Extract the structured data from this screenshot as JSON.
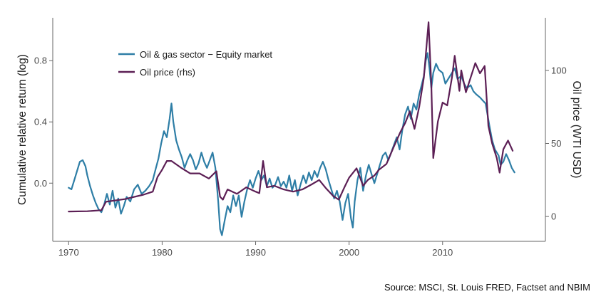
{
  "chart_data": {
    "type": "line",
    "source": "Source: MSCI, St. Louis FRED, Factset and NBIM",
    "x_axis": {
      "ticks": [
        1970,
        1980,
        1990,
        2000,
        2010
      ],
      "tick_labels": [
        "1970",
        "1980",
        "1990",
        "2000",
        "2010"
      ],
      "range": [
        1968.3,
        2021.0
      ]
    },
    "y_left": {
      "label": "Cumulative relative return (log)",
      "ticks": [
        0.0,
        0.4,
        0.8
      ],
      "tick_labels": [
        "0.0",
        "0.4",
        "0.8"
      ],
      "range": [
        -0.38,
        1.08
      ]
    },
    "y_right": {
      "label": "Oil price (WTI USD)",
      "ticks": [
        0,
        50,
        100
      ],
      "tick_labels": [
        "0",
        "50",
        "100"
      ],
      "range": [
        -17,
        136
      ]
    },
    "grid": false,
    "legend": {
      "position": "top-left"
    },
    "series": [
      {
        "name": "Oil & gas sector − Equity market",
        "axis": "left",
        "color": "#2e7ea6",
        "points": [
          [
            1970.0,
            -0.03
          ],
          [
            1970.3,
            -0.04
          ],
          [
            1970.6,
            0.02
          ],
          [
            1970.9,
            0.08
          ],
          [
            1971.2,
            0.14
          ],
          [
            1971.5,
            0.15
          ],
          [
            1971.8,
            0.11
          ],
          [
            1972.0,
            0.05
          ],
          [
            1972.3,
            -0.02
          ],
          [
            1972.6,
            -0.08
          ],
          [
            1972.9,
            -0.13
          ],
          [
            1973.2,
            -0.17
          ],
          [
            1973.5,
            -0.19
          ],
          [
            1973.8,
            -0.14
          ],
          [
            1974.1,
            -0.07
          ],
          [
            1974.4,
            -0.14
          ],
          [
            1974.7,
            -0.05
          ],
          [
            1975.0,
            -0.16
          ],
          [
            1975.3,
            -0.1
          ],
          [
            1975.6,
            -0.2
          ],
          [
            1975.9,
            -0.15
          ],
          [
            1976.2,
            -0.09
          ],
          [
            1976.6,
            -0.12
          ],
          [
            1977.0,
            -0.04
          ],
          [
            1977.4,
            -0.01
          ],
          [
            1977.8,
            -0.07
          ],
          [
            1978.2,
            -0.05
          ],
          [
            1978.6,
            -0.02
          ],
          [
            1979.0,
            0.02
          ],
          [
            1979.3,
            0.09
          ],
          [
            1979.6,
            0.16
          ],
          [
            1979.9,
            0.26
          ],
          [
            1980.2,
            0.34
          ],
          [
            1980.5,
            0.3
          ],
          [
            1980.8,
            0.42
          ],
          [
            1981.0,
            0.52
          ],
          [
            1981.2,
            0.4
          ],
          [
            1981.5,
            0.28
          ],
          [
            1981.8,
            0.22
          ],
          [
            1982.1,
            0.17
          ],
          [
            1982.4,
            0.1
          ],
          [
            1982.7,
            0.15
          ],
          [
            1983.0,
            0.19
          ],
          [
            1983.3,
            0.15
          ],
          [
            1983.6,
            0.09
          ],
          [
            1983.9,
            0.13
          ],
          [
            1984.2,
            0.2
          ],
          [
            1984.5,
            0.14
          ],
          [
            1984.8,
            0.1
          ],
          [
            1985.1,
            0.15
          ],
          [
            1985.4,
            0.2
          ],
          [
            1985.7,
            0.1
          ],
          [
            1986.0,
            -0.12
          ],
          [
            1986.2,
            -0.3
          ],
          [
            1986.4,
            -0.34
          ],
          [
            1986.7,
            -0.24
          ],
          [
            1987.0,
            -0.15
          ],
          [
            1987.3,
            -0.19
          ],
          [
            1987.6,
            -0.08
          ],
          [
            1987.9,
            -0.15
          ],
          [
            1988.2,
            -0.08
          ],
          [
            1988.5,
            -0.22
          ],
          [
            1988.8,
            -0.12
          ],
          [
            1989.1,
            -0.04
          ],
          [
            1989.4,
            0.02
          ],
          [
            1989.7,
            -0.03
          ],
          [
            1990.0,
            0.03
          ],
          [
            1990.3,
            0.08
          ],
          [
            1990.6,
            0.02
          ],
          [
            1990.9,
            0.05
          ],
          [
            1991.2,
            -0.02
          ],
          [
            1991.5,
            0.03
          ],
          [
            1991.8,
            -0.03
          ],
          [
            1992.1,
            -0.01
          ],
          [
            1992.4,
            0.04
          ],
          [
            1992.7,
            -0.02
          ],
          [
            1993.0,
            0.01
          ],
          [
            1993.3,
            -0.03
          ],
          [
            1993.6,
            0.05
          ],
          [
            1993.9,
            -0.05
          ],
          [
            1994.2,
            0.02
          ],
          [
            1994.5,
            -0.08
          ],
          [
            1994.8,
            -0.01
          ],
          [
            1995.1,
            0.05
          ],
          [
            1995.4,
            0.0
          ],
          [
            1995.7,
            0.07
          ],
          [
            1996.0,
            0.02
          ],
          [
            1996.3,
            0.08
          ],
          [
            1996.6,
            0.04
          ],
          [
            1996.9,
            0.1
          ],
          [
            1997.2,
            0.14
          ],
          [
            1997.5,
            0.09
          ],
          [
            1997.8,
            0.02
          ],
          [
            1998.1,
            -0.04
          ],
          [
            1998.4,
            -0.1
          ],
          [
            1998.7,
            -0.05
          ],
          [
            1999.0,
            -0.12
          ],
          [
            1999.3,
            -0.24
          ],
          [
            1999.6,
            -0.13
          ],
          [
            1999.9,
            -0.07
          ],
          [
            2000.2,
            -0.23
          ],
          [
            2000.4,
            -0.29
          ],
          [
            2000.6,
            -0.12
          ],
          [
            2000.9,
            0.02
          ],
          [
            2001.2,
            0.1
          ],
          [
            2001.5,
            -0.05
          ],
          [
            2001.8,
            0.05
          ],
          [
            2002.1,
            0.12
          ],
          [
            2002.4,
            0.06
          ],
          [
            2002.7,
            0.0
          ],
          [
            2003.0,
            0.06
          ],
          [
            2003.3,
            0.12
          ],
          [
            2003.6,
            0.18
          ],
          [
            2003.9,
            0.2
          ],
          [
            2004.2,
            0.15
          ],
          [
            2004.5,
            0.2
          ],
          [
            2004.8,
            0.25
          ],
          [
            2005.1,
            0.3
          ],
          [
            2005.4,
            0.22
          ],
          [
            2005.7,
            0.35
          ],
          [
            2006.0,
            0.45
          ],
          [
            2006.3,
            0.5
          ],
          [
            2006.6,
            0.42
          ],
          [
            2006.9,
            0.52
          ],
          [
            2007.2,
            0.48
          ],
          [
            2007.5,
            0.58
          ],
          [
            2007.8,
            0.65
          ],
          [
            2008.0,
            0.7
          ],
          [
            2008.2,
            0.8
          ],
          [
            2008.4,
            0.85
          ],
          [
            2008.6,
            0.75
          ],
          [
            2008.8,
            0.62
          ],
          [
            2009.0,
            0.72
          ],
          [
            2009.3,
            0.78
          ],
          [
            2009.6,
            0.74
          ],
          [
            2010.0,
            0.72
          ],
          [
            2010.3,
            0.65
          ],
          [
            2010.6,
            0.68
          ],
          [
            2011.0,
            0.72
          ],
          [
            2011.3,
            0.75
          ],
          [
            2011.6,
            0.68
          ],
          [
            2012.0,
            0.7
          ],
          [
            2012.3,
            0.65
          ],
          [
            2012.6,
            0.62
          ],
          [
            2013.0,
            0.64
          ],
          [
            2013.3,
            0.6
          ],
          [
            2013.6,
            0.58
          ],
          [
            2014.0,
            0.56
          ],
          [
            2014.3,
            0.54
          ],
          [
            2014.6,
            0.52
          ],
          [
            2015.0,
            0.38
          ],
          [
            2015.3,
            0.28
          ],
          [
            2015.6,
            0.22
          ],
          [
            2016.0,
            0.18
          ],
          [
            2016.2,
            0.12
          ],
          [
            2016.5,
            0.14
          ],
          [
            2016.8,
            0.19
          ],
          [
            2017.1,
            0.15
          ],
          [
            2017.4,
            0.1
          ],
          [
            2017.7,
            0.07
          ]
        ]
      },
      {
        "name": "Oil price (rhs)",
        "axis": "right",
        "color": "#5c1f55",
        "points": [
          [
            1970.0,
            3.4
          ],
          [
            1972.0,
            3.6
          ],
          [
            1973.5,
            4.3
          ],
          [
            1974.0,
            10.1
          ],
          [
            1976.0,
            11.9
          ],
          [
            1978.0,
            14.9
          ],
          [
            1979.0,
            17.0
          ],
          [
            1979.5,
            27.0
          ],
          [
            1980.0,
            32.0
          ],
          [
            1980.5,
            38.0
          ],
          [
            1981.0,
            38.0
          ],
          [
            1982.0,
            33.5
          ],
          [
            1983.0,
            29.5
          ],
          [
            1984.0,
            29.5
          ],
          [
            1985.0,
            26.0
          ],
          [
            1985.8,
            31.0
          ],
          [
            1986.2,
            13.5
          ],
          [
            1986.5,
            11.5
          ],
          [
            1987.0,
            18.5
          ],
          [
            1988.0,
            15.5
          ],
          [
            1989.0,
            20.0
          ],
          [
            1990.0,
            17.0
          ],
          [
            1990.4,
            16.0
          ],
          [
            1990.8,
            38.0
          ],
          [
            1991.2,
            20.0
          ],
          [
            1992.0,
            21.0
          ],
          [
            1993.0,
            18.5
          ],
          [
            1994.0,
            17.0
          ],
          [
            1995.0,
            18.5
          ],
          [
            1996.0,
            22.0
          ],
          [
            1996.8,
            25.0
          ],
          [
            1997.5,
            19.5
          ],
          [
            1998.3,
            14.0
          ],
          [
            1998.9,
            11.5
          ],
          [
            1999.5,
            20.0
          ],
          [
            2000.0,
            26.5
          ],
          [
            2000.8,
            33.0
          ],
          [
            2001.5,
            21.0
          ],
          [
            2002.0,
            25.0
          ],
          [
            2002.7,
            28.0
          ],
          [
            2003.2,
            32.0
          ],
          [
            2004.0,
            36.0
          ],
          [
            2004.8,
            48.0
          ],
          [
            2005.5,
            58.0
          ],
          [
            2006.0,
            64.0
          ],
          [
            2006.5,
            72.0
          ],
          [
            2007.0,
            60.0
          ],
          [
            2007.5,
            75.0
          ],
          [
            2008.0,
            95.0
          ],
          [
            2008.5,
            133.0
          ],
          [
            2008.8,
            90.0
          ],
          [
            2009.0,
            40.0
          ],
          [
            2009.5,
            65.0
          ],
          [
            2010.0,
            78.0
          ],
          [
            2010.5,
            76.0
          ],
          [
            2011.0,
            95.0
          ],
          [
            2011.3,
            110.0
          ],
          [
            2011.8,
            86.0
          ],
          [
            2012.0,
            100.0
          ],
          [
            2012.5,
            85.0
          ],
          [
            2013.0,
            95.0
          ],
          [
            2013.5,
            105.0
          ],
          [
            2014.0,
            98.0
          ],
          [
            2014.5,
            103.0
          ],
          [
            2014.9,
            62.0
          ],
          [
            2015.3,
            50.0
          ],
          [
            2015.8,
            40.0
          ],
          [
            2016.1,
            30.0
          ],
          [
            2016.5,
            46.0
          ],
          [
            2017.0,
            52.0
          ],
          [
            2017.5,
            45.0
          ]
        ]
      }
    ]
  }
}
